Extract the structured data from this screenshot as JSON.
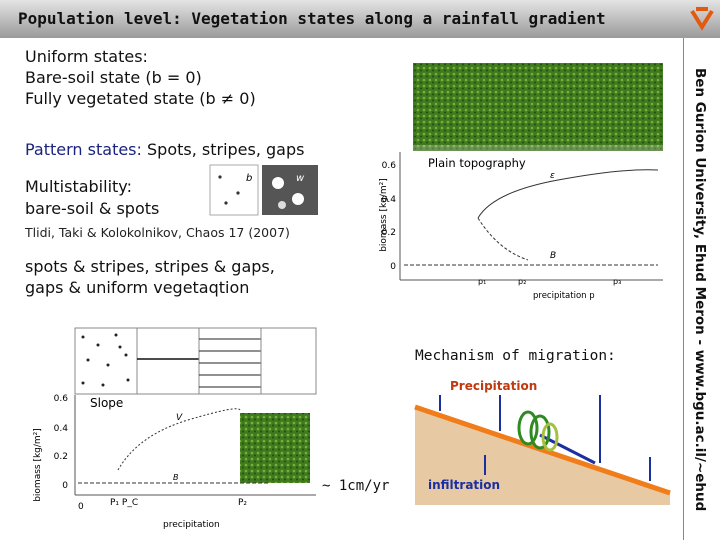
{
  "header": {
    "title": "Population level: Vegetation states along a rainfall gradient"
  },
  "side_text": "Ben Gurion University, Ehud Meron - www.bgu.ac.il/~ehud",
  "uniform": {
    "heading": "Uniform states:",
    "lines": [
      "Bare-soil state (b = 0)",
      "Fully vegetated state (b ≠ 0)"
    ]
  },
  "pattern": {
    "label": "Pattern states:",
    "text": "Spots, stripes, gaps"
  },
  "multistability": {
    "heading": "Multistability:",
    "text": "bare-soil & spots",
    "inset_labels": [
      "b",
      "w"
    ]
  },
  "citation": "Tlidi, Taki & Kolokolnikov, Chaos 17 (2007)",
  "combinations": [
    "spots & stripes, stripes & gaps,",
    "gaps & uniform vegetaqtion"
  ],
  "plain_figure": {
    "title": "Plain topography",
    "y_label": "biomass [kg/m²]",
    "x_label": "precipitation p",
    "yticks": [
      "0.6",
      "0.4",
      "0.2",
      "0"
    ],
    "xticks": [
      "p₁",
      "p₂",
      "p₃"
    ],
    "curve_labels": [
      "ε",
      "B"
    ]
  },
  "slope_figure": {
    "title": "Slope",
    "y_label": "biomass [kg/m²]",
    "x_label": "precipitation",
    "yticks": [
      "0.6",
      "0.4",
      "0.2",
      "0"
    ],
    "xticks": [
      "0",
      "P₁ P_C",
      "P₂"
    ],
    "curve_labels": [
      "V",
      "B"
    ],
    "rate": "~ 1cm/yr"
  },
  "migration": {
    "title": "Mechanism of migration:",
    "precipitation": "Precipitation",
    "infiltration": "infiltration"
  }
}
